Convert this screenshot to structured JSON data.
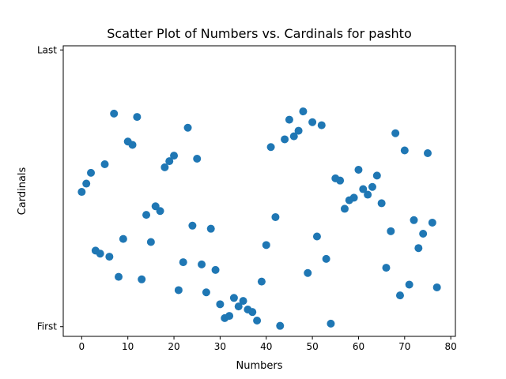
{
  "chart_data": {
    "type": "scatter",
    "title": "Scatter Plot of Numbers vs. Cardinals for pashto",
    "xlabel": "Numbers",
    "ylabel": "Cardinals",
    "xlim": [
      -4,
      81
    ],
    "ylim": [
      -0.035,
      1.015
    ],
    "x_ticks": [
      0,
      10,
      20,
      30,
      40,
      50,
      60,
      70,
      80
    ],
    "y_ticks": [
      {
        "value": 0,
        "label": "First"
      },
      {
        "value": 1,
        "label": "Last"
      }
    ],
    "grid": false,
    "marker_color": "#1f77b4",
    "points": [
      {
        "x": 0,
        "y": 0.487
      },
      {
        "x": 1,
        "y": 0.517
      },
      {
        "x": 2,
        "y": 0.556
      },
      {
        "x": 3,
        "y": 0.275
      },
      {
        "x": 4,
        "y": 0.264
      },
      {
        "x": 5,
        "y": 0.587
      },
      {
        "x": 6,
        "y": 0.253
      },
      {
        "x": 7,
        "y": 0.77
      },
      {
        "x": 8,
        "y": 0.18
      },
      {
        "x": 9,
        "y": 0.317
      },
      {
        "x": 10,
        "y": 0.669
      },
      {
        "x": 11,
        "y": 0.657
      },
      {
        "x": 12,
        "y": 0.758
      },
      {
        "x": 13,
        "y": 0.171
      },
      {
        "x": 14,
        "y": 0.404
      },
      {
        "x": 15,
        "y": 0.306
      },
      {
        "x": 16,
        "y": 0.435
      },
      {
        "x": 17,
        "y": 0.418
      },
      {
        "x": 18,
        "y": 0.576
      },
      {
        "x": 19,
        "y": 0.598
      },
      {
        "x": 20,
        "y": 0.618
      },
      {
        "x": 21,
        "y": 0.132
      },
      {
        "x": 22,
        "y": 0.233
      },
      {
        "x": 23,
        "y": 0.719
      },
      {
        "x": 24,
        "y": 0.365
      },
      {
        "x": 25,
        "y": 0.607
      },
      {
        "x": 26,
        "y": 0.225
      },
      {
        "x": 27,
        "y": 0.124
      },
      {
        "x": 28,
        "y": 0.354
      },
      {
        "x": 29,
        "y": 0.205
      },
      {
        "x": 30,
        "y": 0.081
      },
      {
        "x": 31,
        "y": 0.031
      },
      {
        "x": 32,
        "y": 0.039
      },
      {
        "x": 33,
        "y": 0.104
      },
      {
        "x": 34,
        "y": 0.073
      },
      {
        "x": 35,
        "y": 0.093
      },
      {
        "x": 36,
        "y": 0.062
      },
      {
        "x": 37,
        "y": 0.053
      },
      {
        "x": 38,
        "y": 0.022
      },
      {
        "x": 39,
        "y": 0.163
      },
      {
        "x": 40,
        "y": 0.295
      },
      {
        "x": 41,
        "y": 0.649
      },
      {
        "x": 42,
        "y": 0.396
      },
      {
        "x": 43,
        "y": 0.003
      },
      {
        "x": 44,
        "y": 0.677
      },
      {
        "x": 45,
        "y": 0.748
      },
      {
        "x": 46,
        "y": 0.688
      },
      {
        "x": 47,
        "y": 0.708
      },
      {
        "x": 48,
        "y": 0.778
      },
      {
        "x": 49,
        "y": 0.194
      },
      {
        "x": 50,
        "y": 0.739
      },
      {
        "x": 51,
        "y": 0.326
      },
      {
        "x": 52,
        "y": 0.728
      },
      {
        "x": 53,
        "y": 0.245
      },
      {
        "x": 54,
        "y": 0.011
      },
      {
        "x": 55,
        "y": 0.536
      },
      {
        "x": 56,
        "y": 0.528
      },
      {
        "x": 57,
        "y": 0.426
      },
      {
        "x": 58,
        "y": 0.457
      },
      {
        "x": 59,
        "y": 0.466
      },
      {
        "x": 60,
        "y": 0.567
      },
      {
        "x": 61,
        "y": 0.497
      },
      {
        "x": 62,
        "y": 0.477
      },
      {
        "x": 63,
        "y": 0.505
      },
      {
        "x": 64,
        "y": 0.546
      },
      {
        "x": 65,
        "y": 0.446
      },
      {
        "x": 66,
        "y": 0.213
      },
      {
        "x": 67,
        "y": 0.345
      },
      {
        "x": 68,
        "y": 0.699
      },
      {
        "x": 69,
        "y": 0.113
      },
      {
        "x": 70,
        "y": 0.637
      },
      {
        "x": 71,
        "y": 0.152
      },
      {
        "x": 72,
        "y": 0.385
      },
      {
        "x": 73,
        "y": 0.284
      },
      {
        "x": 74,
        "y": 0.336
      },
      {
        "x": 75,
        "y": 0.627
      },
      {
        "x": 76,
        "y": 0.376
      },
      {
        "x": 77,
        "y": 0.142
      }
    ]
  }
}
